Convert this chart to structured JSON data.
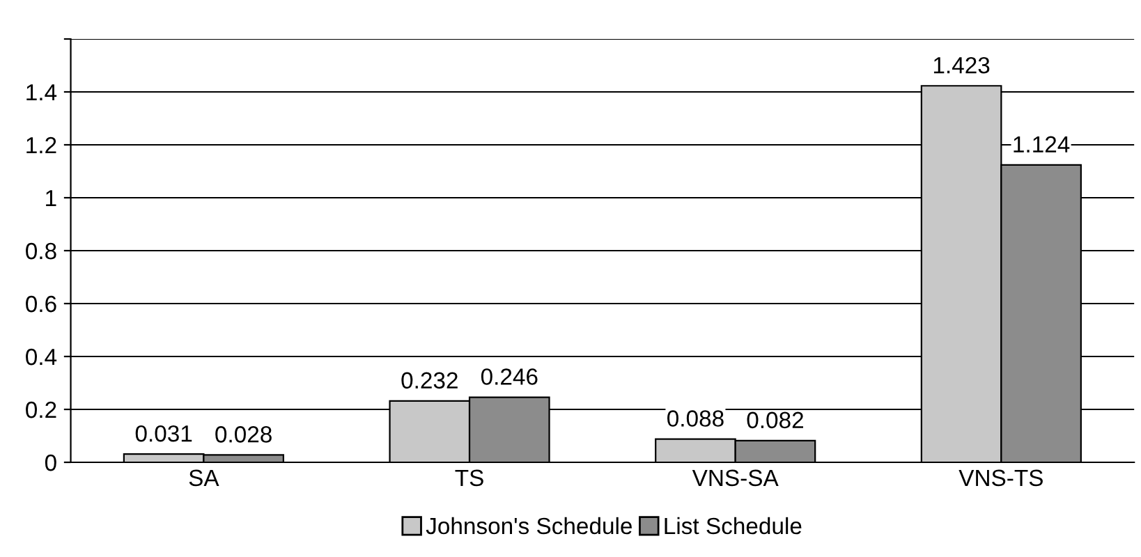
{
  "chart_data": {
    "type": "bar",
    "categories": [
      "SA",
      "TS",
      "VNS-SA",
      "VNS-TS"
    ],
    "series": [
      {
        "name": "Johnson's Schedule",
        "color": "#c8c8c8",
        "values": [
          0.031,
          0.232,
          0.088,
          1.423
        ]
      },
      {
        "name": "List Schedule",
        "color": "#8c8c8c",
        "values": [
          0.028,
          0.246,
          0.082,
          1.124
        ]
      }
    ],
    "ylim": [
      0,
      1.6
    ],
    "yticks": [
      0,
      0.2,
      0.4,
      0.6,
      0.8,
      1,
      1.2,
      1.4,
      {
        "value": 1.6,
        "label": null
      }
    ],
    "grid": "y",
    "legend": "bottom",
    "data_labels": true
  }
}
